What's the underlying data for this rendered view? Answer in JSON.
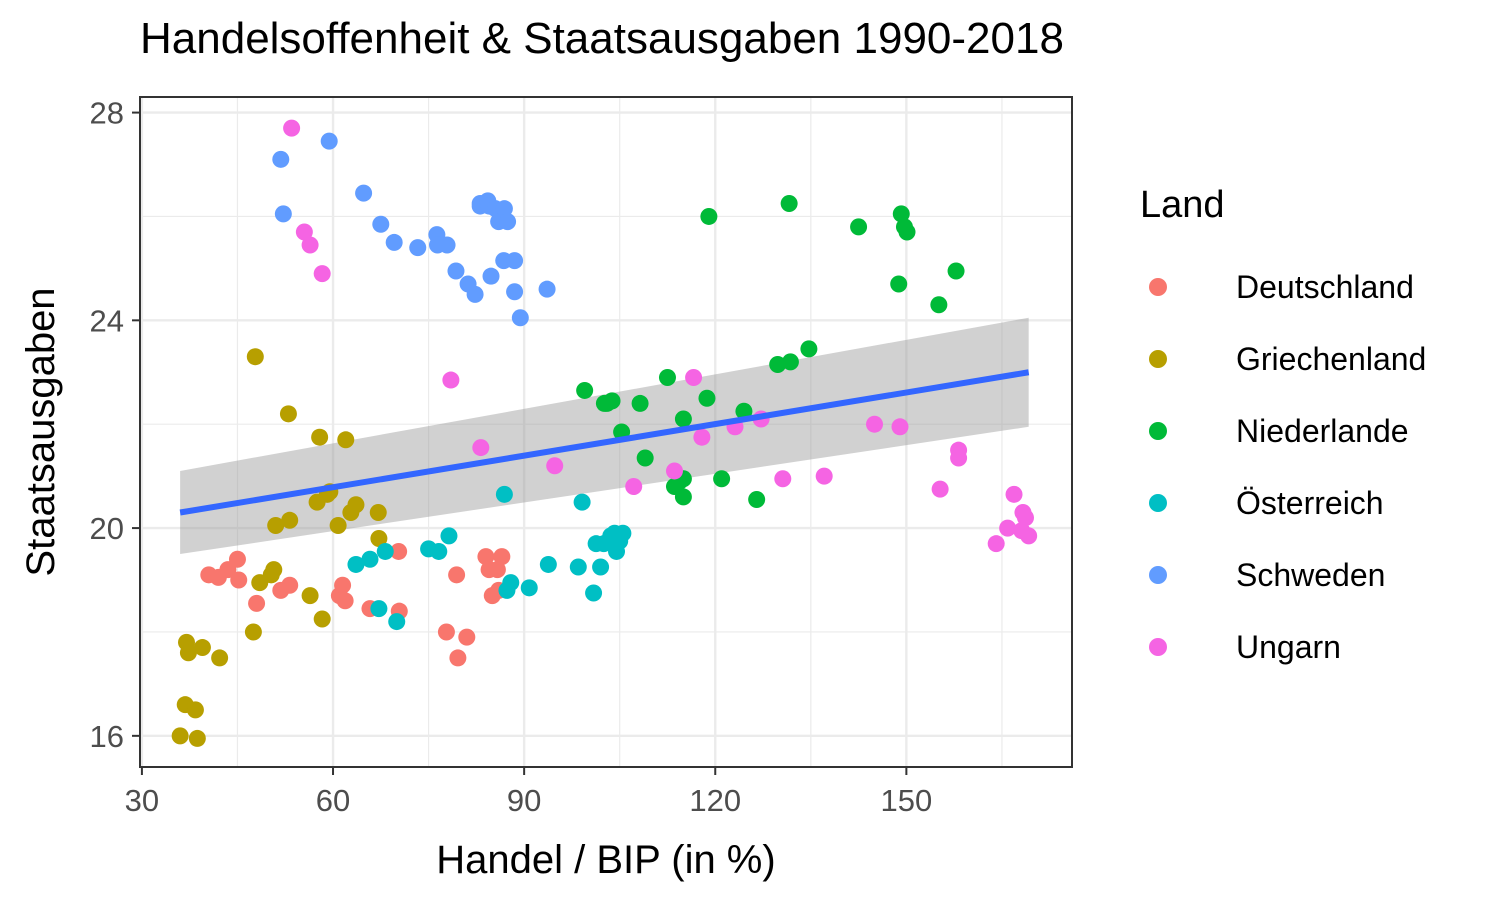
{
  "chart_data": {
    "type": "scatter",
    "title": "Handelsoffenheit & Staatsausgaben 1990-2018",
    "xlabel": "Handel / BIP (in %)",
    "ylabel": "Staatsausgaben",
    "xlim": [
      29.7,
      176.0
    ],
    "ylim": [
      15.4,
      28.3
    ],
    "x_ticks": [
      30,
      60,
      90,
      120,
      150
    ],
    "y_ticks": [
      16,
      20,
      24,
      28
    ],
    "grid": true,
    "legend": {
      "title": "Land",
      "position": "right"
    },
    "series": [
      {
        "name": "Deutschland",
        "color": "#F8766D",
        "points": [
          [
            40.5,
            19.1
          ],
          [
            42,
            19.05
          ],
          [
            43.5,
            19.2
          ],
          [
            45,
            19.4
          ],
          [
            45.2,
            19.0
          ],
          [
            48,
            18.55
          ],
          [
            51.8,
            18.8
          ],
          [
            53.2,
            18.9
          ],
          [
            61,
            18.7
          ],
          [
            61.5,
            18.9
          ],
          [
            61.9,
            18.6
          ],
          [
            65.8,
            18.45
          ],
          [
            70.3,
            19.55
          ],
          [
            70.4,
            18.4
          ],
          [
            77.8,
            18.0
          ],
          [
            79.4,
            19.1
          ],
          [
            79.6,
            17.5
          ],
          [
            81,
            17.9
          ],
          [
            84,
            19.45
          ],
          [
            84.5,
            19.2
          ],
          [
            85,
            18.7
          ],
          [
            85.8,
            19.2
          ],
          [
            86,
            18.8
          ],
          [
            86.5,
            19.45
          ]
        ]
      },
      {
        "name": "Griechenland",
        "color": "#B79F00",
        "points": [
          [
            36,
            16.0
          ],
          [
            36.8,
            16.6
          ],
          [
            37,
            17.8
          ],
          [
            37.3,
            17.6
          ],
          [
            38.4,
            16.5
          ],
          [
            38.7,
            15.95
          ],
          [
            39.5,
            17.7
          ],
          [
            42.2,
            17.5
          ],
          [
            47.5,
            18.0
          ],
          [
            47.8,
            23.3
          ],
          [
            48.5,
            18.95
          ],
          [
            50.3,
            19.1
          ],
          [
            50.7,
            19.2
          ],
          [
            51,
            20.05
          ],
          [
            53,
            22.2
          ],
          [
            53.2,
            20.15
          ],
          [
            56.4,
            18.7
          ],
          [
            57.5,
            20.5
          ],
          [
            57.9,
            21.75
          ],
          [
            58.3,
            18.25
          ],
          [
            59.1,
            20.65
          ],
          [
            59.5,
            20.7
          ],
          [
            60.8,
            20.05
          ],
          [
            62,
            21.7
          ],
          [
            62.8,
            20.3
          ],
          [
            63.6,
            20.45
          ],
          [
            67.1,
            20.3
          ],
          [
            67.2,
            19.8
          ]
        ]
      },
      {
        "name": "Niederlande",
        "color": "#00BA38",
        "points": [
          [
            99.5,
            22.65
          ],
          [
            102.6,
            22.4
          ],
          [
            103,
            22.4
          ],
          [
            103.8,
            22.45
          ],
          [
            105.3,
            21.85
          ],
          [
            108.2,
            22.4
          ],
          [
            109,
            21.35
          ],
          [
            112.5,
            22.9
          ],
          [
            113.6,
            20.8
          ],
          [
            114.4,
            20.9
          ],
          [
            115,
            22.1
          ],
          [
            115,
            20.95
          ],
          [
            115,
            20.6
          ],
          [
            118.7,
            22.5
          ],
          [
            119,
            26.0
          ],
          [
            121,
            20.95
          ],
          [
            124.5,
            22.25
          ],
          [
            126.5,
            20.55
          ],
          [
            129.8,
            23.15
          ],
          [
            131.6,
            26.25
          ],
          [
            131.8,
            23.2
          ],
          [
            134.7,
            23.45
          ],
          [
            142.5,
            25.8
          ],
          [
            148.8,
            24.7
          ],
          [
            149.2,
            26.05
          ],
          [
            149.7,
            25.8
          ],
          [
            150.1,
            25.7
          ],
          [
            155.1,
            24.3
          ],
          [
            157.8,
            24.95
          ]
        ]
      },
      {
        "name": "Österreich",
        "color": "#00BFC4",
        "points": [
          [
            63.6,
            19.3
          ],
          [
            65.8,
            19.4
          ],
          [
            67.2,
            18.45
          ],
          [
            68.2,
            19.55
          ],
          [
            70,
            18.2
          ],
          [
            75,
            19.6
          ],
          [
            76.6,
            19.55
          ],
          [
            78.2,
            19.85
          ],
          [
            86.9,
            20.65
          ],
          [
            87.3,
            18.8
          ],
          [
            87.9,
            18.95
          ],
          [
            90.8,
            18.85
          ],
          [
            93.8,
            19.3
          ],
          [
            98.5,
            19.25
          ],
          [
            99.1,
            20.5
          ],
          [
            100.9,
            18.75
          ],
          [
            101.3,
            19.7
          ],
          [
            102,
            19.25
          ],
          [
            102.5,
            19.7
          ],
          [
            103.6,
            19.85
          ],
          [
            104.2,
            19.9
          ],
          [
            104.5,
            19.55
          ],
          [
            105,
            19.75
          ],
          [
            105.5,
            19.9
          ]
        ]
      },
      {
        "name": "Schweden",
        "color": "#619CFF",
        "points": [
          [
            51.8,
            27.1
          ],
          [
            52.2,
            26.05
          ],
          [
            59.4,
            27.45
          ],
          [
            64.8,
            26.45
          ],
          [
            67.5,
            25.85
          ],
          [
            69.6,
            25.5
          ],
          [
            73.3,
            25.4
          ],
          [
            76.3,
            25.65
          ],
          [
            76.4,
            25.45
          ],
          [
            77.9,
            25.45
          ],
          [
            79.3,
            24.95
          ],
          [
            81.2,
            24.7
          ],
          [
            82.3,
            24.5
          ],
          [
            83.1,
            26.2
          ],
          [
            83.1,
            26.25
          ],
          [
            84.3,
            26.3
          ],
          [
            84.5,
            26.2
          ],
          [
            84.8,
            24.85
          ],
          [
            85.5,
            26.15
          ],
          [
            86,
            25.9
          ],
          [
            86.8,
            25.15
          ],
          [
            86.9,
            26.15
          ],
          [
            87.4,
            25.9
          ],
          [
            88.5,
            25.15
          ],
          [
            88.5,
            24.55
          ],
          [
            89.4,
            24.05
          ],
          [
            93.6,
            24.6
          ]
        ]
      },
      {
        "name": "Ungarn",
        "color": "#F564E3",
        "points": [
          [
            53.5,
            27.7
          ],
          [
            55.5,
            25.7
          ],
          [
            56.4,
            25.45
          ],
          [
            58.3,
            24.9
          ],
          [
            78.5,
            22.85
          ],
          [
            83.2,
            21.55
          ],
          [
            94.8,
            21.2
          ],
          [
            107.2,
            20.8
          ],
          [
            113.6,
            21.1
          ],
          [
            116.6,
            22.9
          ],
          [
            117.9,
            21.75
          ],
          [
            123.1,
            21.95
          ],
          [
            127.2,
            22.1
          ],
          [
            130.6,
            20.95
          ],
          [
            137.1,
            21.0
          ],
          [
            145,
            22.0
          ],
          [
            149,
            21.95
          ],
          [
            155.3,
            20.75
          ],
          [
            158.2,
            21.5
          ],
          [
            158.2,
            21.35
          ],
          [
            164.1,
            19.7
          ],
          [
            165.9,
            20.0
          ],
          [
            166.9,
            20.65
          ],
          [
            168.1,
            19.95
          ],
          [
            168.3,
            20.3
          ],
          [
            168.7,
            20.2
          ],
          [
            169.2,
            19.85
          ]
        ]
      }
    ],
    "trend": {
      "x": [
        36,
        169.2
      ],
      "y": [
        20.3,
        23.0
      ],
      "band_lower": [
        19.5,
        21.95
      ],
      "band_upper": [
        21.1,
        24.05
      ]
    }
  }
}
